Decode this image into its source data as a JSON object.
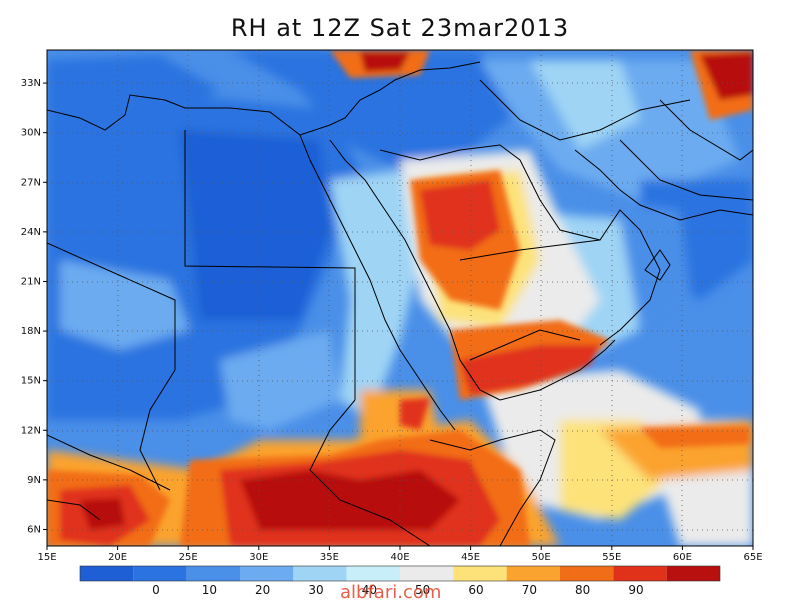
{
  "title": "RH at 12Z Sat 23mar2013",
  "watermark": "albfari.com",
  "map": {
    "lon_labels": [
      "15E",
      "20E",
      "25E",
      "30E",
      "35E",
      "40E",
      "45E",
      "50E",
      "55E",
      "60E",
      "65E"
    ],
    "lat_labels": [
      "6N",
      "9N",
      "12N",
      "15N",
      "18N",
      "21N",
      "24N",
      "27N",
      "30N",
      "33N"
    ],
    "lon_range": [
      15,
      65
    ],
    "lat_range": [
      5,
      35
    ],
    "grid": "dotted"
  },
  "colorbar": {
    "labels": [
      "0",
      "10",
      "20",
      "30",
      "40",
      "50",
      "60",
      "70",
      "80",
      "90"
    ],
    "colors": [
      "#1e5fd6",
      "#2b73e0",
      "#4a8fe8",
      "#6cabf0",
      "#9fd4f5",
      "#c8eefa",
      "#ebebeb",
      "#fde27a",
      "#fba32f",
      "#f26d18",
      "#e0321a",
      "#b80f0f"
    ]
  }
}
